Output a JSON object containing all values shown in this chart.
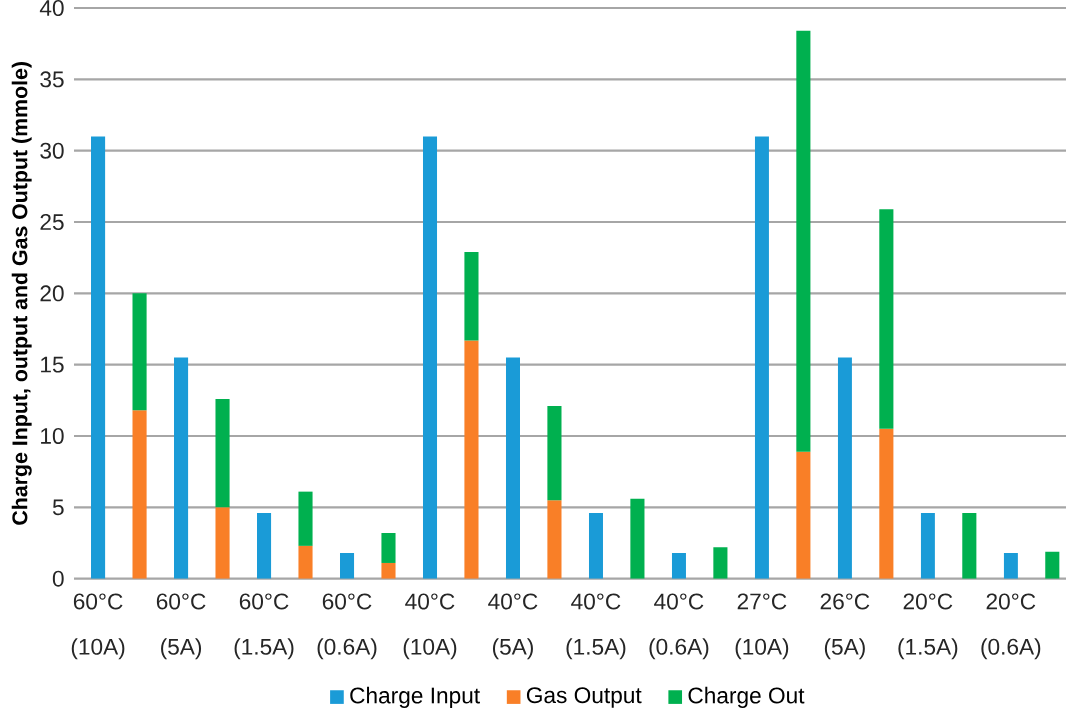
{
  "chart_data": {
    "type": "bar",
    "ylabel": "Charge Input, output and Gas Output (mmole)",
    "categories": [
      "60°C (10A)",
      null,
      "60°C (5A)",
      null,
      "60°C (1.5A)",
      null,
      "60°C (0.6A)",
      null,
      "40°C (10A)",
      null,
      "40°C (5A)",
      null,
      "40°C (1.5A)",
      null,
      "40°C (0.6A)",
      null,
      "27°C (10A)",
      null,
      "26°C (5A)",
      null,
      "20°C (1.5A)",
      null,
      "20°C (0.6A)",
      null
    ],
    "stacked": true,
    "series": [
      {
        "name": "Charge Input",
        "color": "#1a9bd7",
        "values": [
          31.0,
          null,
          15.5,
          null,
          4.6,
          null,
          1.8,
          null,
          31.0,
          null,
          15.5,
          null,
          4.6,
          null,
          1.8,
          null,
          31.0,
          null,
          15.5,
          null,
          4.6,
          null,
          1.8,
          null
        ]
      },
      {
        "name": "Gas Output",
        "color": "#f97f27",
        "values": [
          null,
          11.8,
          null,
          5.0,
          null,
          2.3,
          null,
          1.1,
          null,
          16.7,
          null,
          5.5,
          null,
          0,
          null,
          0,
          null,
          8.9,
          null,
          10.5,
          null,
          0,
          null,
          0
        ]
      },
      {
        "name": "Charge Out",
        "color": "#00b04f",
        "values": [
          null,
          8.2,
          null,
          7.6,
          null,
          3.8,
          null,
          2.1,
          null,
          6.2,
          null,
          6.6,
          null,
          5.6,
          null,
          2.2,
          null,
          29.5,
          null,
          15.4,
          null,
          4.6,
          null,
          1.9
        ]
      }
    ],
    "ylim": [
      0,
      40
    ],
    "yticks": [
      0,
      5,
      10,
      15,
      20,
      25,
      30,
      35,
      40
    ],
    "grid": "y",
    "legend": "bottom"
  }
}
